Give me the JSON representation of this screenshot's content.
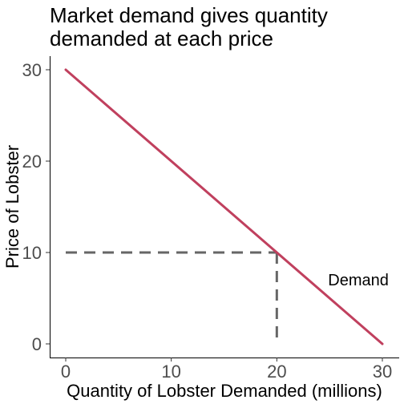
{
  "chart_data": {
    "type": "line",
    "title_lines": [
      "Market demand gives quantity",
      "demanded at each price"
    ],
    "xlabel": "Quantity of Lobster Demanded (millions)",
    "ylabel": "Price of Lobster",
    "xlim": [
      0,
      30
    ],
    "ylim": [
      0,
      30
    ],
    "x_ticks": [
      0,
      10,
      20,
      30
    ],
    "y_ticks": [
      0,
      10,
      20,
      30
    ],
    "x_tick_labels": [
      "0",
      "10",
      "20",
      "30"
    ],
    "y_tick_labels": [
      "0",
      "10",
      "20",
      "30"
    ],
    "grid": false,
    "series": [
      {
        "name": "Demand",
        "color": "#c0405e",
        "points": [
          {
            "x": 0,
            "y": 30
          },
          {
            "x": 30,
            "y": 0
          }
        ]
      }
    ],
    "reference_lines": {
      "color": "#666666",
      "point": {
        "x": 20,
        "y": 10
      }
    },
    "annotation": {
      "text": "Demand",
      "x": 27.5,
      "y": 7
    }
  }
}
